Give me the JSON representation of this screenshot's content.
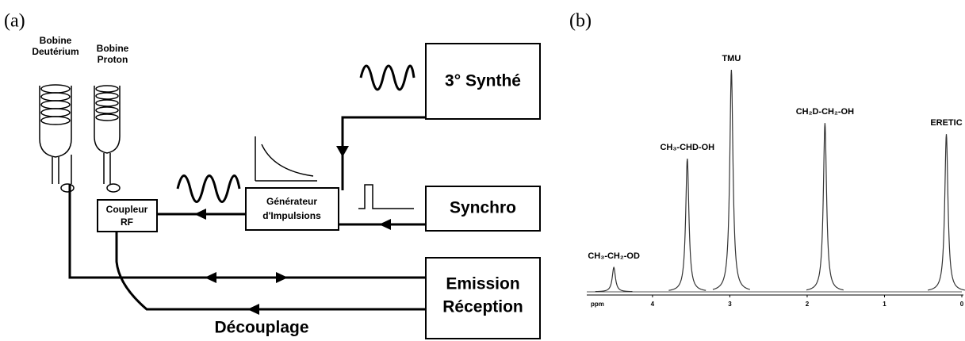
{
  "panel_a": {
    "label": "(a)",
    "coil_deuterium": [
      "Bobine",
      "Deutérium"
    ],
    "coil_proton": [
      "Bobine",
      "Proton"
    ],
    "synthe": "3° Synthé",
    "synchro": "Synchro",
    "generator": [
      "Générateur",
      "d'Impulsions"
    ],
    "coupler": [
      "Coupleur",
      "RF"
    ],
    "emission": [
      "Emission",
      "Réception"
    ],
    "decoupling": "Découplage"
  },
  "chart_data": {
    "type": "spectrum",
    "label": "(b)",
    "x_label": "ppm",
    "xlim": [
      4.85,
      0
    ],
    "xticks": [
      4,
      3,
      2,
      1,
      0
    ],
    "peaks": [
      {
        "name": "CH₃-CH₂-OD",
        "ppm": 4.5,
        "height": 11
      },
      {
        "name": "CH₃-CHD-OH",
        "ppm": 3.55,
        "height": 60
      },
      {
        "name": "TMU",
        "ppm": 2.98,
        "height": 100
      },
      {
        "name": "CH₂D-CH₂-OH",
        "ppm": 1.77,
        "height": 76
      },
      {
        "name": "ERETIC",
        "ppm": 0.2,
        "height": 71
      }
    ]
  }
}
